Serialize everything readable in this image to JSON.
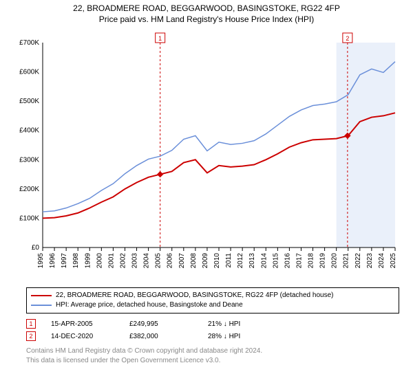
{
  "title": {
    "line1": "22, BROADMERE ROAD, BEGGARWOOD, BASINGSTOKE, RG22 4FP",
    "line2": "Price paid vs. HM Land Registry's House Price Index (HPI)"
  },
  "chart": {
    "type": "line",
    "background_color": "#ffffff",
    "grid_color": "#e6e6e6",
    "band_color": "#eaf0fa",
    "band_x": [
      2020,
      2025
    ],
    "xlim": [
      1995,
      2025
    ],
    "ylim": [
      0,
      700000
    ],
    "x_ticks": [
      1995,
      1996,
      1997,
      1998,
      1999,
      2000,
      2001,
      2002,
      2003,
      2004,
      2005,
      2006,
      2007,
      2008,
      2009,
      2010,
      2011,
      2012,
      2013,
      2014,
      2015,
      2016,
      2017,
      2018,
      2019,
      2020,
      2021,
      2022,
      2023,
      2024,
      2025
    ],
    "y_ticks": [
      0,
      100000,
      200000,
      300000,
      400000,
      500000,
      600000,
      700000
    ],
    "y_tick_labels": [
      "£0",
      "£100K",
      "£200K",
      "£300K",
      "£400K",
      "£500K",
      "£600K",
      "£700K"
    ],
    "line_width_red": 2,
    "line_width_blue": 1.5,
    "series": {
      "red": {
        "label": "22, BROADMERE ROAD, BEGGARWOOD, BASINGSTOKE, RG22 4FP (detached house)",
        "color": "#cc0000",
        "points": [
          [
            1995,
            100000
          ],
          [
            1996,
            102000
          ],
          [
            1997,
            108000
          ],
          [
            1998,
            118000
          ],
          [
            1999,
            135000
          ],
          [
            2000,
            155000
          ],
          [
            2001,
            173000
          ],
          [
            2002,
            200000
          ],
          [
            2003,
            222000
          ],
          [
            2004,
            240000
          ],
          [
            2005,
            249995
          ],
          [
            2006,
            260000
          ],
          [
            2007,
            290000
          ],
          [
            2008,
            300000
          ],
          [
            2009,
            255000
          ],
          [
            2010,
            280000
          ],
          [
            2011,
            275000
          ],
          [
            2012,
            278000
          ],
          [
            2013,
            283000
          ],
          [
            2014,
            300000
          ],
          [
            2015,
            320000
          ],
          [
            2016,
            343000
          ],
          [
            2017,
            358000
          ],
          [
            2018,
            368000
          ],
          [
            2019,
            370000
          ],
          [
            2020,
            372000
          ],
          [
            2021,
            382000
          ],
          [
            2022,
            430000
          ],
          [
            2023,
            445000
          ],
          [
            2024,
            450000
          ],
          [
            2025,
            460000
          ]
        ]
      },
      "blue": {
        "label": "HPI: Average price, detached house, Basingstoke and Deane",
        "color": "#6a8fd9",
        "points": [
          [
            1995,
            122000
          ],
          [
            1996,
            125000
          ],
          [
            1997,
            135000
          ],
          [
            1998,
            150000
          ],
          [
            1999,
            168000
          ],
          [
            2000,
            195000
          ],
          [
            2001,
            218000
          ],
          [
            2002,
            252000
          ],
          [
            2003,
            280000
          ],
          [
            2004,
            302000
          ],
          [
            2005,
            312000
          ],
          [
            2006,
            332000
          ],
          [
            2007,
            370000
          ],
          [
            2008,
            382000
          ],
          [
            2009,
            330000
          ],
          [
            2010,
            360000
          ],
          [
            2011,
            352000
          ],
          [
            2012,
            356000
          ],
          [
            2013,
            365000
          ],
          [
            2014,
            388000
          ],
          [
            2015,
            418000
          ],
          [
            2016,
            448000
          ],
          [
            2017,
            470000
          ],
          [
            2018,
            485000
          ],
          [
            2019,
            490000
          ],
          [
            2020,
            498000
          ],
          [
            2021,
            522000
          ],
          [
            2022,
            590000
          ],
          [
            2023,
            610000
          ],
          [
            2024,
            598000
          ],
          [
            2025,
            635000
          ]
        ]
      }
    },
    "markers": [
      {
        "n": "1",
        "x": 2005,
        "y": 249995
      },
      {
        "n": "2",
        "x": 2020.95,
        "y": 382000
      }
    ]
  },
  "legend": {
    "row1_color": "#cc0000",
    "row2_color": "#6a8fd9"
  },
  "sales": [
    {
      "n": "1",
      "date": "15-APR-2005",
      "price": "£249,995",
      "delta": "21% ↓ HPI"
    },
    {
      "n": "2",
      "date": "14-DEC-2020",
      "price": "£382,000",
      "delta": "28% ↓ HPI"
    }
  ],
  "footer": {
    "line1": "Contains HM Land Registry data © Crown copyright and database right 2024.",
    "line2": "This data is licensed under the Open Government Licence v3.0."
  }
}
